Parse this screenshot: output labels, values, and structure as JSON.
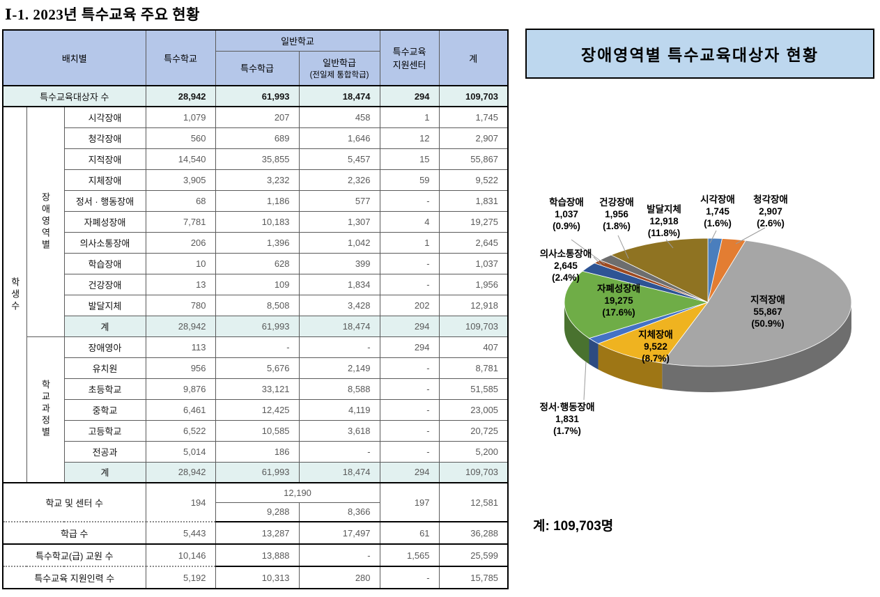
{
  "page_title": "Ⅰ-1. 2023년 특수교육 주요 현황",
  "table": {
    "header": {
      "placement": "배치별",
      "special_school": "특수학교",
      "general_school": "일반학교",
      "special_class": "특수학급",
      "general_class_line1": "일반학급",
      "general_class_line2": "(전일제 통합학급)",
      "support_center": "특수교육\n지원센터",
      "total": "계"
    },
    "recipients_row": {
      "label": "특수교육대상자 수",
      "values": [
        "28,942",
        "61,993",
        "18,474",
        "294",
        "109,703"
      ]
    },
    "students_group_label": "학생수",
    "disability_section": {
      "group_label": "장애영역별",
      "rows": [
        {
          "label": "시각장애",
          "values": [
            "1,079",
            "207",
            "458",
            "1",
            "1,745"
          ]
        },
        {
          "label": "청각장애",
          "values": [
            "560",
            "689",
            "1,646",
            "12",
            "2,907"
          ]
        },
        {
          "label": "지적장애",
          "values": [
            "14,540",
            "35,855",
            "5,457",
            "15",
            "55,867"
          ]
        },
        {
          "label": "지체장애",
          "values": [
            "3,905",
            "3,232",
            "2,326",
            "59",
            "9,522"
          ]
        },
        {
          "label": "정서 · 행동장애",
          "values": [
            "68",
            "1,186",
            "577",
            "-",
            "1,831"
          ]
        },
        {
          "label": "자폐성장애",
          "values": [
            "7,781",
            "10,183",
            "1,307",
            "4",
            "19,275"
          ]
        },
        {
          "label": "의사소통장애",
          "values": [
            "206",
            "1,396",
            "1,042",
            "1",
            "2,645"
          ]
        },
        {
          "label": "학습장애",
          "values": [
            "10",
            "628",
            "399",
            "-",
            "1,037"
          ]
        },
        {
          "label": "건강장애",
          "values": [
            "13",
            "109",
            "1,834",
            "-",
            "1,956"
          ]
        },
        {
          "label": "발달지체",
          "values": [
            "780",
            "8,508",
            "3,428",
            "202",
            "12,918"
          ]
        }
      ],
      "total_row": {
        "label": "계",
        "values": [
          "28,942",
          "61,993",
          "18,474",
          "294",
          "109,703"
        ]
      }
    },
    "school_level_section": {
      "group_label": "학교과정별",
      "rows": [
        {
          "label": "장애영아",
          "values": [
            "113",
            "-",
            "-",
            "294",
            "407"
          ]
        },
        {
          "label": "유치원",
          "values": [
            "956",
            "5,676",
            "2,149",
            "-",
            "8,781"
          ]
        },
        {
          "label": "초등학교",
          "values": [
            "9,876",
            "33,121",
            "8,588",
            "-",
            "51,585"
          ]
        },
        {
          "label": "중학교",
          "values": [
            "6,461",
            "12,425",
            "4,119",
            "-",
            "23,005"
          ]
        },
        {
          "label": "고등학교",
          "values": [
            "6,522",
            "10,585",
            "3,618",
            "-",
            "20,725"
          ]
        },
        {
          "label": "전공과",
          "values": [
            "5,014",
            "186",
            "-",
            "-",
            "5,200"
          ]
        }
      ],
      "total_row": {
        "label": "계",
        "values": [
          "28,942",
          "61,993",
          "18,474",
          "294",
          "109,703"
        ]
      }
    },
    "schools_centers_row": {
      "label": "학교 및 센터 수",
      "special_school": "194",
      "general_school_total": "12,190",
      "special_class": "9,288",
      "general_class": "8,366",
      "support_center": "197",
      "total": "12,581"
    },
    "classes_row": {
      "label": "학급 수",
      "values": [
        "5,443",
        "13,287",
        "17,497",
        "61",
        "36,288"
      ]
    },
    "teachers_row": {
      "label": "특수학교(급) 교원 수",
      "values": [
        "10,146",
        "13,888",
        "-",
        "1,565",
        "25,599"
      ]
    },
    "support_staff_row": {
      "label": "특수교육 지원인력 수",
      "values": [
        "5,192",
        "10,313",
        "280",
        "-",
        "15,785"
      ]
    }
  },
  "chart_panel": {
    "title": "장애영역별 특수교육대상자 현황",
    "total_label": "계:  109,703명"
  },
  "chart_data": {
    "type": "pie",
    "title": "장애영역별 특수교육대상자 현황",
    "style": "3d",
    "start_angle_deg": 0,
    "total": 109703,
    "slices": [
      {
        "label": "시각장애",
        "value": 1745,
        "display": "1,745",
        "pct": "1.6%",
        "color": "#4A7EBD",
        "label_mode": "outside"
      },
      {
        "label": "청각장애",
        "value": 2907,
        "display": "2,907",
        "pct": "2.6%",
        "color": "#E37D32",
        "label_mode": "outside"
      },
      {
        "label": "지적장애",
        "value": 55867,
        "display": "55,867",
        "pct": "50.9%",
        "color": "#A6A6A6",
        "label_mode": "inside"
      },
      {
        "label": "지체장애",
        "value": 9522,
        "display": "9,522",
        "pct": "8.7%",
        "color": "#EFB320",
        "label_mode": "inside"
      },
      {
        "label": "정서·행동장애",
        "value": 1831,
        "display": "1,831",
        "pct": "1.7%",
        "color": "#4472C4",
        "label_mode": "outside"
      },
      {
        "label": "자폐성장애",
        "value": 19275,
        "display": "19,275",
        "pct": "17.6%",
        "color": "#6FAD47",
        "label_mode": "inside"
      },
      {
        "label": "의사소통장애",
        "value": 2645,
        "display": "2,645",
        "pct": "2.4%",
        "color": "#2E5494",
        "label_mode": "outside"
      },
      {
        "label": "학습장애",
        "value": 1037,
        "display": "1,037",
        "pct": "0.9%",
        "color": "#9E4A21",
        "label_mode": "outside"
      },
      {
        "label": "건강장애",
        "value": 1956,
        "display": "1,956",
        "pct": "1.8%",
        "color": "#6E6E6E",
        "label_mode": "outside"
      },
      {
        "label": "발달지체",
        "value": 12918,
        "display": "12,918",
        "pct": "11.8%",
        "color": "#8F7322",
        "label_mode": "outside"
      }
    ]
  }
}
